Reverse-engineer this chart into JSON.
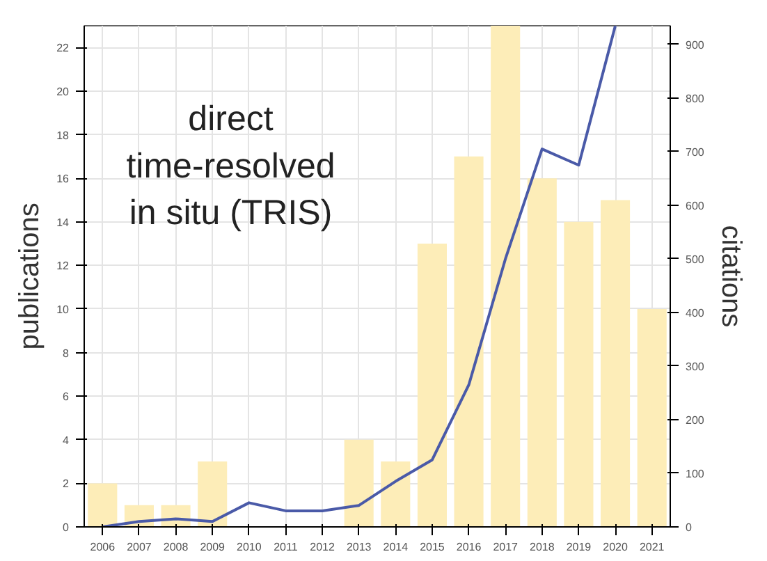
{
  "chart_data": {
    "type": "bar",
    "categories": [
      "2006",
      "2007",
      "2008",
      "2009",
      "2010",
      "2011",
      "2012",
      "2013",
      "2014",
      "2015",
      "2016",
      "2017",
      "2018",
      "2019",
      "2020",
      "2021"
    ],
    "series": [
      {
        "color": "#fdedb8",
        "values": [
          2,
          1,
          1,
          3,
          0,
          0,
          0,
          4,
          3,
          13,
          17,
          23,
          16,
          14,
          15,
          10
        ]
      },
      {
        "type": "line",
        "axis": "y2",
        "color": "#4a5aa8",
        "values": [
          0,
          10,
          15,
          10,
          45,
          30,
          30,
          40,
          85,
          125,
          265,
          500,
          705,
          675,
          935,
          null
        ]
      }
    ],
    "ylabel": "publications",
    "y2label": "citations",
    "ylim": [
      0,
      23
    ],
    "yticks": [
      0,
      2,
      4,
      6,
      8,
      10,
      12,
      14,
      16,
      18,
      20,
      22
    ],
    "y2lim": [
      0,
      935
    ],
    "y2ticks": [
      0,
      100,
      200,
      300,
      400,
      500,
      600,
      700,
      800,
      900
    ],
    "annotations": [
      "direct\ntime-resolved\nin situ (TRIS)"
    ],
    "grid": true,
    "line_style": "solid"
  }
}
